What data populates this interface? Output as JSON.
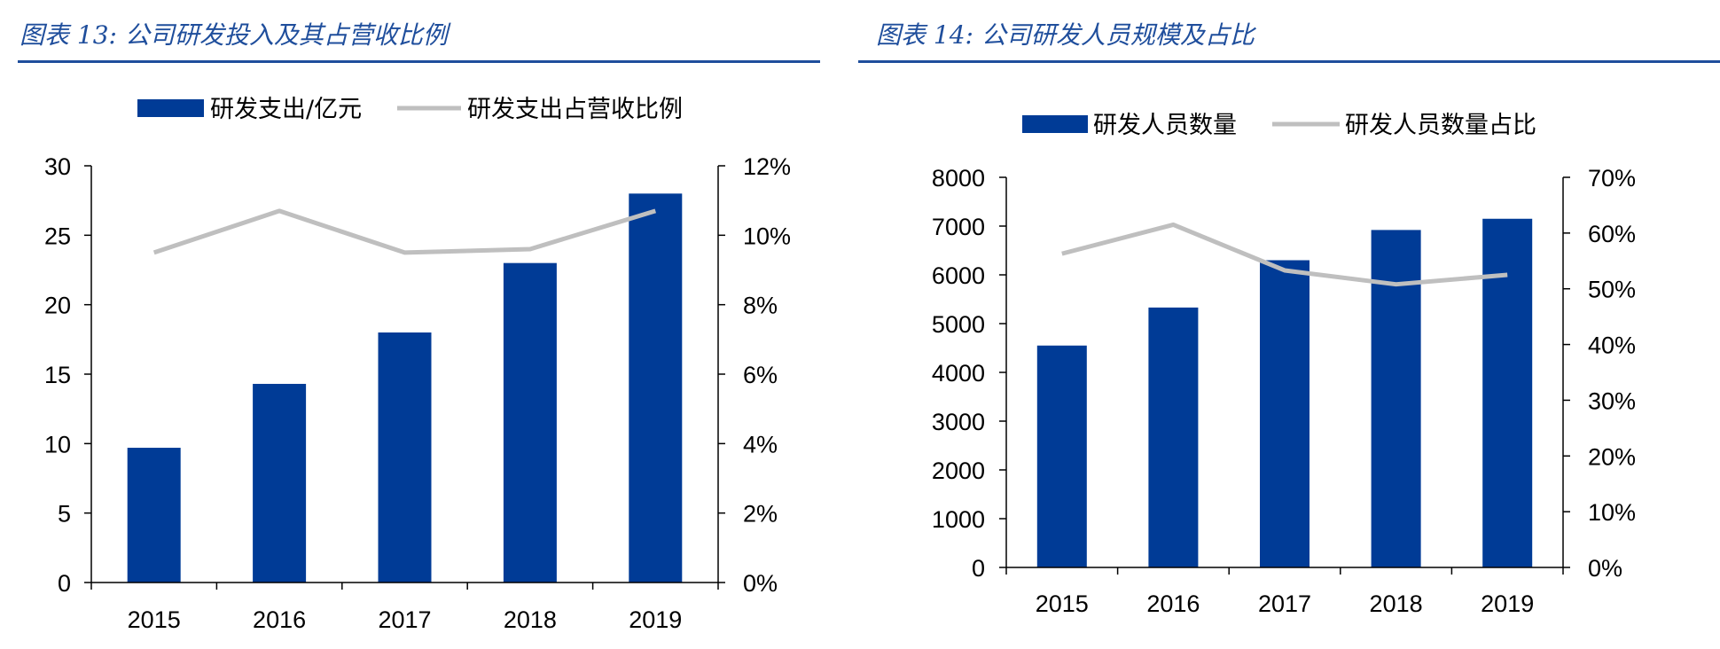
{
  "chart_data": [
    {
      "type": "bar",
      "title": "图表 13: 公司研发投入及其占营收比例",
      "categories": [
        "2015",
        "2016",
        "2017",
        "2018",
        "2019"
      ],
      "series": [
        {
          "name": "研发支出/亿元",
          "type": "bar",
          "axis": "left",
          "values": [
            9.7,
            14.3,
            18.0,
            23.0,
            28.0
          ]
        },
        {
          "name": "研发支出占营收比例",
          "type": "line",
          "axis": "right",
          "values": [
            9.5,
            10.7,
            9.5,
            9.6,
            10.7
          ]
        }
      ],
      "ylim": [
        0,
        30
      ],
      "yticks": [
        "0",
        "5",
        "10",
        "15",
        "20",
        "25",
        "30"
      ],
      "y2lim": [
        0,
        12
      ],
      "y2ticks": [
        "0%",
        "2%",
        "4%",
        "6%",
        "8%",
        "10%",
        "12%"
      ],
      "legend": "top",
      "grid": false
    },
    {
      "type": "bar",
      "title": "图表 14: 公司研发人员规模及占比",
      "categories": [
        "2015",
        "2016",
        "2017",
        "2018",
        "2019"
      ],
      "series": [
        {
          "name": "研发人员数量",
          "type": "bar",
          "axis": "left",
          "values": [
            4550,
            5330,
            6300,
            6920,
            7150
          ]
        },
        {
          "name": "研发人员数量占比",
          "type": "line",
          "axis": "right",
          "values": [
            56.3,
            61.5,
            53.3,
            50.8,
            52.5
          ]
        }
      ],
      "ylim": [
        0,
        8000
      ],
      "yticks": [
        "0",
        "1000",
        "2000",
        "3000",
        "4000",
        "5000",
        "6000",
        "7000",
        "8000"
      ],
      "y2lim": [
        0,
        70
      ],
      "y2ticks": [
        "0%",
        "10%",
        "20%",
        "30%",
        "40%",
        "50%",
        "60%",
        "70%"
      ],
      "legend": "top",
      "grid": false
    }
  ],
  "colors": {
    "bar": "#003b96",
    "line": "#bfbfbf",
    "title": "#1f4e9c"
  }
}
